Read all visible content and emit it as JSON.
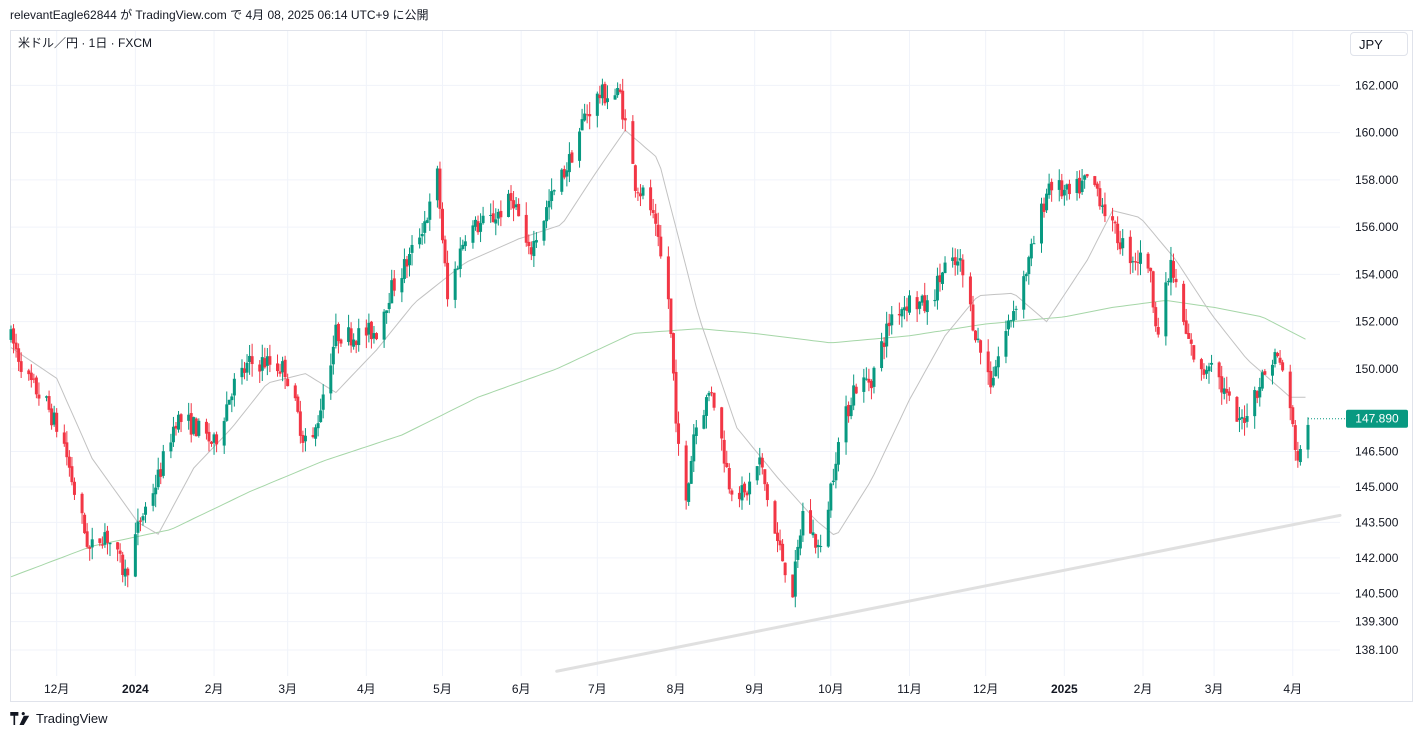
{
  "header": {
    "publisher": "relevantEagle62844 が TradingView.com で 4月 08, 2025 06:14 UTC+9 に公開"
  },
  "symbol_label": "米ドル／円 · 1日 · FXCM",
  "currency_button": "JPY",
  "footer": {
    "brand": "TradingView",
    "logo_icon": "tradingview-logo-icon"
  },
  "colors": {
    "up": "#089981",
    "down": "#f23645",
    "ma_short": "#c2c2c2",
    "ma_long": "#a5d6a7",
    "trendline": "#e0e0e0",
    "grid": "#f0f3fa",
    "last_price_bg": "#089981"
  },
  "chart_data": {
    "type": "candlestick",
    "y_axis_side": "right",
    "ylim": [
      137.0,
      163.2
    ],
    "price_ticks": [
      "162.000",
      "160.000",
      "158.000",
      "156.000",
      "154.000",
      "152.000",
      "150.000",
      "146.500",
      "145.000",
      "143.500",
      "142.000",
      "140.500",
      "139.300",
      "138.100"
    ],
    "price_tick_values": [
      162.0,
      160.0,
      158.0,
      156.0,
      154.0,
      152.0,
      150.0,
      146.5,
      145.0,
      143.5,
      142.0,
      140.5,
      139.3,
      138.1
    ],
    "x_ticks": [
      {
        "label": "12月",
        "date": "2023-12-01",
        "bold": false
      },
      {
        "label": "2024",
        "date": "2024-01-01",
        "bold": true
      },
      {
        "label": "2月",
        "date": "2024-02-01",
        "bold": false
      },
      {
        "label": "3月",
        "date": "2024-03-01",
        "bold": false
      },
      {
        "label": "4月",
        "date": "2024-04-01",
        "bold": false
      },
      {
        "label": "5月",
        "date": "2024-05-01",
        "bold": false
      },
      {
        "label": "6月",
        "date": "2024-06-01",
        "bold": false
      },
      {
        "label": "7月",
        "date": "2024-07-01",
        "bold": false
      },
      {
        "label": "8月",
        "date": "2024-08-01",
        "bold": false
      },
      {
        "label": "9月",
        "date": "2024-09-01",
        "bold": false
      },
      {
        "label": "10月",
        "date": "2024-10-01",
        "bold": false
      },
      {
        "label": "11月",
        "date": "2024-11-01",
        "bold": false
      },
      {
        "label": "12月",
        "date": "2024-12-01",
        "bold": false
      },
      {
        "label": "2025",
        "date": "2025-01-01",
        "bold": true
      },
      {
        "label": "2月",
        "date": "2025-02-01",
        "bold": false
      },
      {
        "label": "3月",
        "date": "2025-03-01",
        "bold": false
      },
      {
        "label": "4月",
        "date": "2025-04-01",
        "bold": false
      }
    ],
    "last_price": "147.890",
    "last_price_value": 147.89,
    "x_range": [
      "2023-11-13",
      "2025-04-07"
    ],
    "close_path": [
      [
        "2023-11-13",
        151.3
      ],
      [
        "2023-11-20",
        149.5
      ],
      [
        "2023-11-27",
        148.5
      ],
      [
        "2023-12-04",
        146.8
      ],
      [
        "2023-12-08",
        144.8
      ],
      [
        "2023-12-14",
        142.3
      ],
      [
        "2023-12-20",
        143.1
      ],
      [
        "2023-12-28",
        141.3
      ],
      [
        "2024-01-03",
        143.6
      ],
      [
        "2024-01-10",
        145.4
      ],
      [
        "2024-01-17",
        147.9
      ],
      [
        "2024-01-24",
        147.6
      ],
      [
        "2024-02-01",
        146.8
      ],
      [
        "2024-02-08",
        149.2
      ],
      [
        "2024-02-15",
        150.2
      ],
      [
        "2024-02-21",
        150.3
      ],
      [
        "2024-02-29",
        150.0
      ],
      [
        "2024-03-07",
        147.2
      ],
      [
        "2024-03-11",
        146.9
      ],
      [
        "2024-03-15",
        149.0
      ],
      [
        "2024-03-20",
        151.5
      ],
      [
        "2024-03-27",
        151.4
      ],
      [
        "2024-04-05",
        151.6
      ],
      [
        "2024-04-10",
        153.2
      ],
      [
        "2024-04-18",
        154.7
      ],
      [
        "2024-04-26",
        156.8
      ],
      [
        "2024-04-29",
        158.2
      ],
      [
        "2024-05-03",
        152.9
      ],
      [
        "2024-05-10",
        155.8
      ],
      [
        "2024-05-20",
        156.3
      ],
      [
        "2024-05-29",
        157.2
      ],
      [
        "2024-06-04",
        154.8
      ],
      [
        "2024-06-12",
        157.0
      ],
      [
        "2024-06-20",
        158.8
      ],
      [
        "2024-06-26",
        160.7
      ],
      [
        "2024-07-02",
        161.6
      ],
      [
        "2024-07-10",
        161.6
      ],
      [
        "2024-07-16",
        157.9
      ],
      [
        "2024-07-22",
        156.8
      ],
      [
        "2024-07-29",
        153.0
      ],
      [
        "2024-08-02",
        146.5
      ],
      [
        "2024-08-05",
        144.2
      ],
      [
        "2024-08-08",
        147.3
      ],
      [
        "2024-08-15",
        149.2
      ],
      [
        "2024-08-22",
        145.2
      ],
      [
        "2024-08-28",
        144.6
      ],
      [
        "2024-09-03",
        146.1
      ],
      [
        "2024-09-09",
        143.0
      ],
      [
        "2024-09-16",
        140.6
      ],
      [
        "2024-09-20",
        143.9
      ],
      [
        "2024-09-27",
        142.2
      ],
      [
        "2024-10-03",
        146.4
      ],
      [
        "2024-10-10",
        149.2
      ],
      [
        "2024-10-17",
        149.6
      ],
      [
        "2024-10-25",
        152.3
      ],
      [
        "2024-11-01",
        152.9
      ],
      [
        "2024-11-08",
        152.6
      ],
      [
        "2024-11-15",
        154.3
      ],
      [
        "2024-11-21",
        154.4
      ],
      [
        "2024-11-28",
        151.1
      ],
      [
        "2024-12-03",
        149.5
      ],
      [
        "2024-12-10",
        151.9
      ],
      [
        "2024-12-18",
        154.5
      ],
      [
        "2024-12-26",
        157.9
      ],
      [
        "2025-01-03",
        157.3
      ],
      [
        "2025-01-10",
        158.0
      ],
      [
        "2025-01-14",
        157.6
      ],
      [
        "2025-01-20",
        155.9
      ],
      [
        "2025-01-27",
        154.8
      ],
      [
        "2025-02-03",
        154.5
      ],
      [
        "2025-02-07",
        151.5
      ],
      [
        "2025-02-12",
        154.4
      ],
      [
        "2025-02-18",
        151.4
      ],
      [
        "2025-02-24",
        149.7
      ],
      [
        "2025-02-28",
        150.6
      ],
      [
        "2025-03-04",
        149.2
      ],
      [
        "2025-03-11",
        147.6
      ],
      [
        "2025-03-18",
        149.2
      ],
      [
        "2025-03-25",
        150.6
      ],
      [
        "2025-03-28",
        150.0
      ],
      [
        "2025-04-03",
        146.2
      ],
      [
        "2025-04-04",
        146.3
      ],
      [
        "2025-04-07",
        147.89
      ]
    ],
    "ma_short_path": [
      [
        "2023-11-13",
        150.9
      ],
      [
        "2023-12-01",
        149.6
      ],
      [
        "2023-12-15",
        146.2
      ],
      [
        "2024-01-02",
        143.5
      ],
      [
        "2024-01-10",
        143.0
      ],
      [
        "2024-01-24",
        145.8
      ],
      [
        "2024-02-08",
        147.5
      ],
      [
        "2024-02-22",
        149.4
      ],
      [
        "2024-03-08",
        149.8
      ],
      [
        "2024-03-20",
        149.0
      ],
      [
        "2024-04-05",
        150.8
      ],
      [
        "2024-04-20",
        152.8
      ],
      [
        "2024-05-10",
        154.5
      ],
      [
        "2024-05-31",
        155.5
      ],
      [
        "2024-06-17",
        156.1
      ],
      [
        "2024-07-01",
        158.4
      ],
      [
        "2024-07-12",
        160.1
      ],
      [
        "2024-07-25",
        158.9
      ],
      [
        "2024-08-10",
        152.2
      ],
      [
        "2024-08-25",
        147.5
      ],
      [
        "2024-09-10",
        145.4
      ],
      [
        "2024-09-25",
        143.6
      ],
      [
        "2024-10-03",
        142.9
      ],
      [
        "2024-10-17",
        145.3
      ],
      [
        "2024-11-01",
        148.7
      ],
      [
        "2024-11-15",
        151.4
      ],
      [
        "2024-11-28",
        153.1
      ],
      [
        "2024-12-12",
        153.2
      ],
      [
        "2024-12-25",
        152.0
      ],
      [
        "2025-01-10",
        154.6
      ],
      [
        "2025-01-20",
        156.7
      ],
      [
        "2025-01-31",
        156.4
      ],
      [
        "2025-02-14",
        154.6
      ],
      [
        "2025-02-28",
        152.3
      ],
      [
        "2025-03-14",
        150.4
      ],
      [
        "2025-03-31",
        148.8
      ],
      [
        "2025-04-07",
        148.8
      ]
    ],
    "ma_long_path": [
      [
        "2023-11-13",
        141.2
      ],
      [
        "2023-12-15",
        142.5
      ],
      [
        "2024-01-15",
        143.2
      ],
      [
        "2024-02-15",
        144.8
      ],
      [
        "2024-03-15",
        146.1
      ],
      [
        "2024-04-15",
        147.2
      ],
      [
        "2024-05-15",
        148.8
      ],
      [
        "2024-06-15",
        150.0
      ],
      [
        "2024-07-15",
        151.5
      ],
      [
        "2024-08-10",
        151.7
      ],
      [
        "2024-09-01",
        151.5
      ],
      [
        "2024-10-01",
        151.1
      ],
      [
        "2024-11-01",
        151.4
      ],
      [
        "2024-12-01",
        151.9
      ],
      [
        "2025-01-01",
        152.2
      ],
      [
        "2025-01-20",
        152.6
      ],
      [
        "2025-02-10",
        152.9
      ],
      [
        "2025-03-01",
        152.6
      ],
      [
        "2025-03-20",
        152.2
      ],
      [
        "2025-04-07",
        151.2
      ]
    ],
    "trendline": [
      [
        "2024-06-15",
        137.2
      ],
      [
        "2025-04-30",
        143.8
      ]
    ]
  }
}
